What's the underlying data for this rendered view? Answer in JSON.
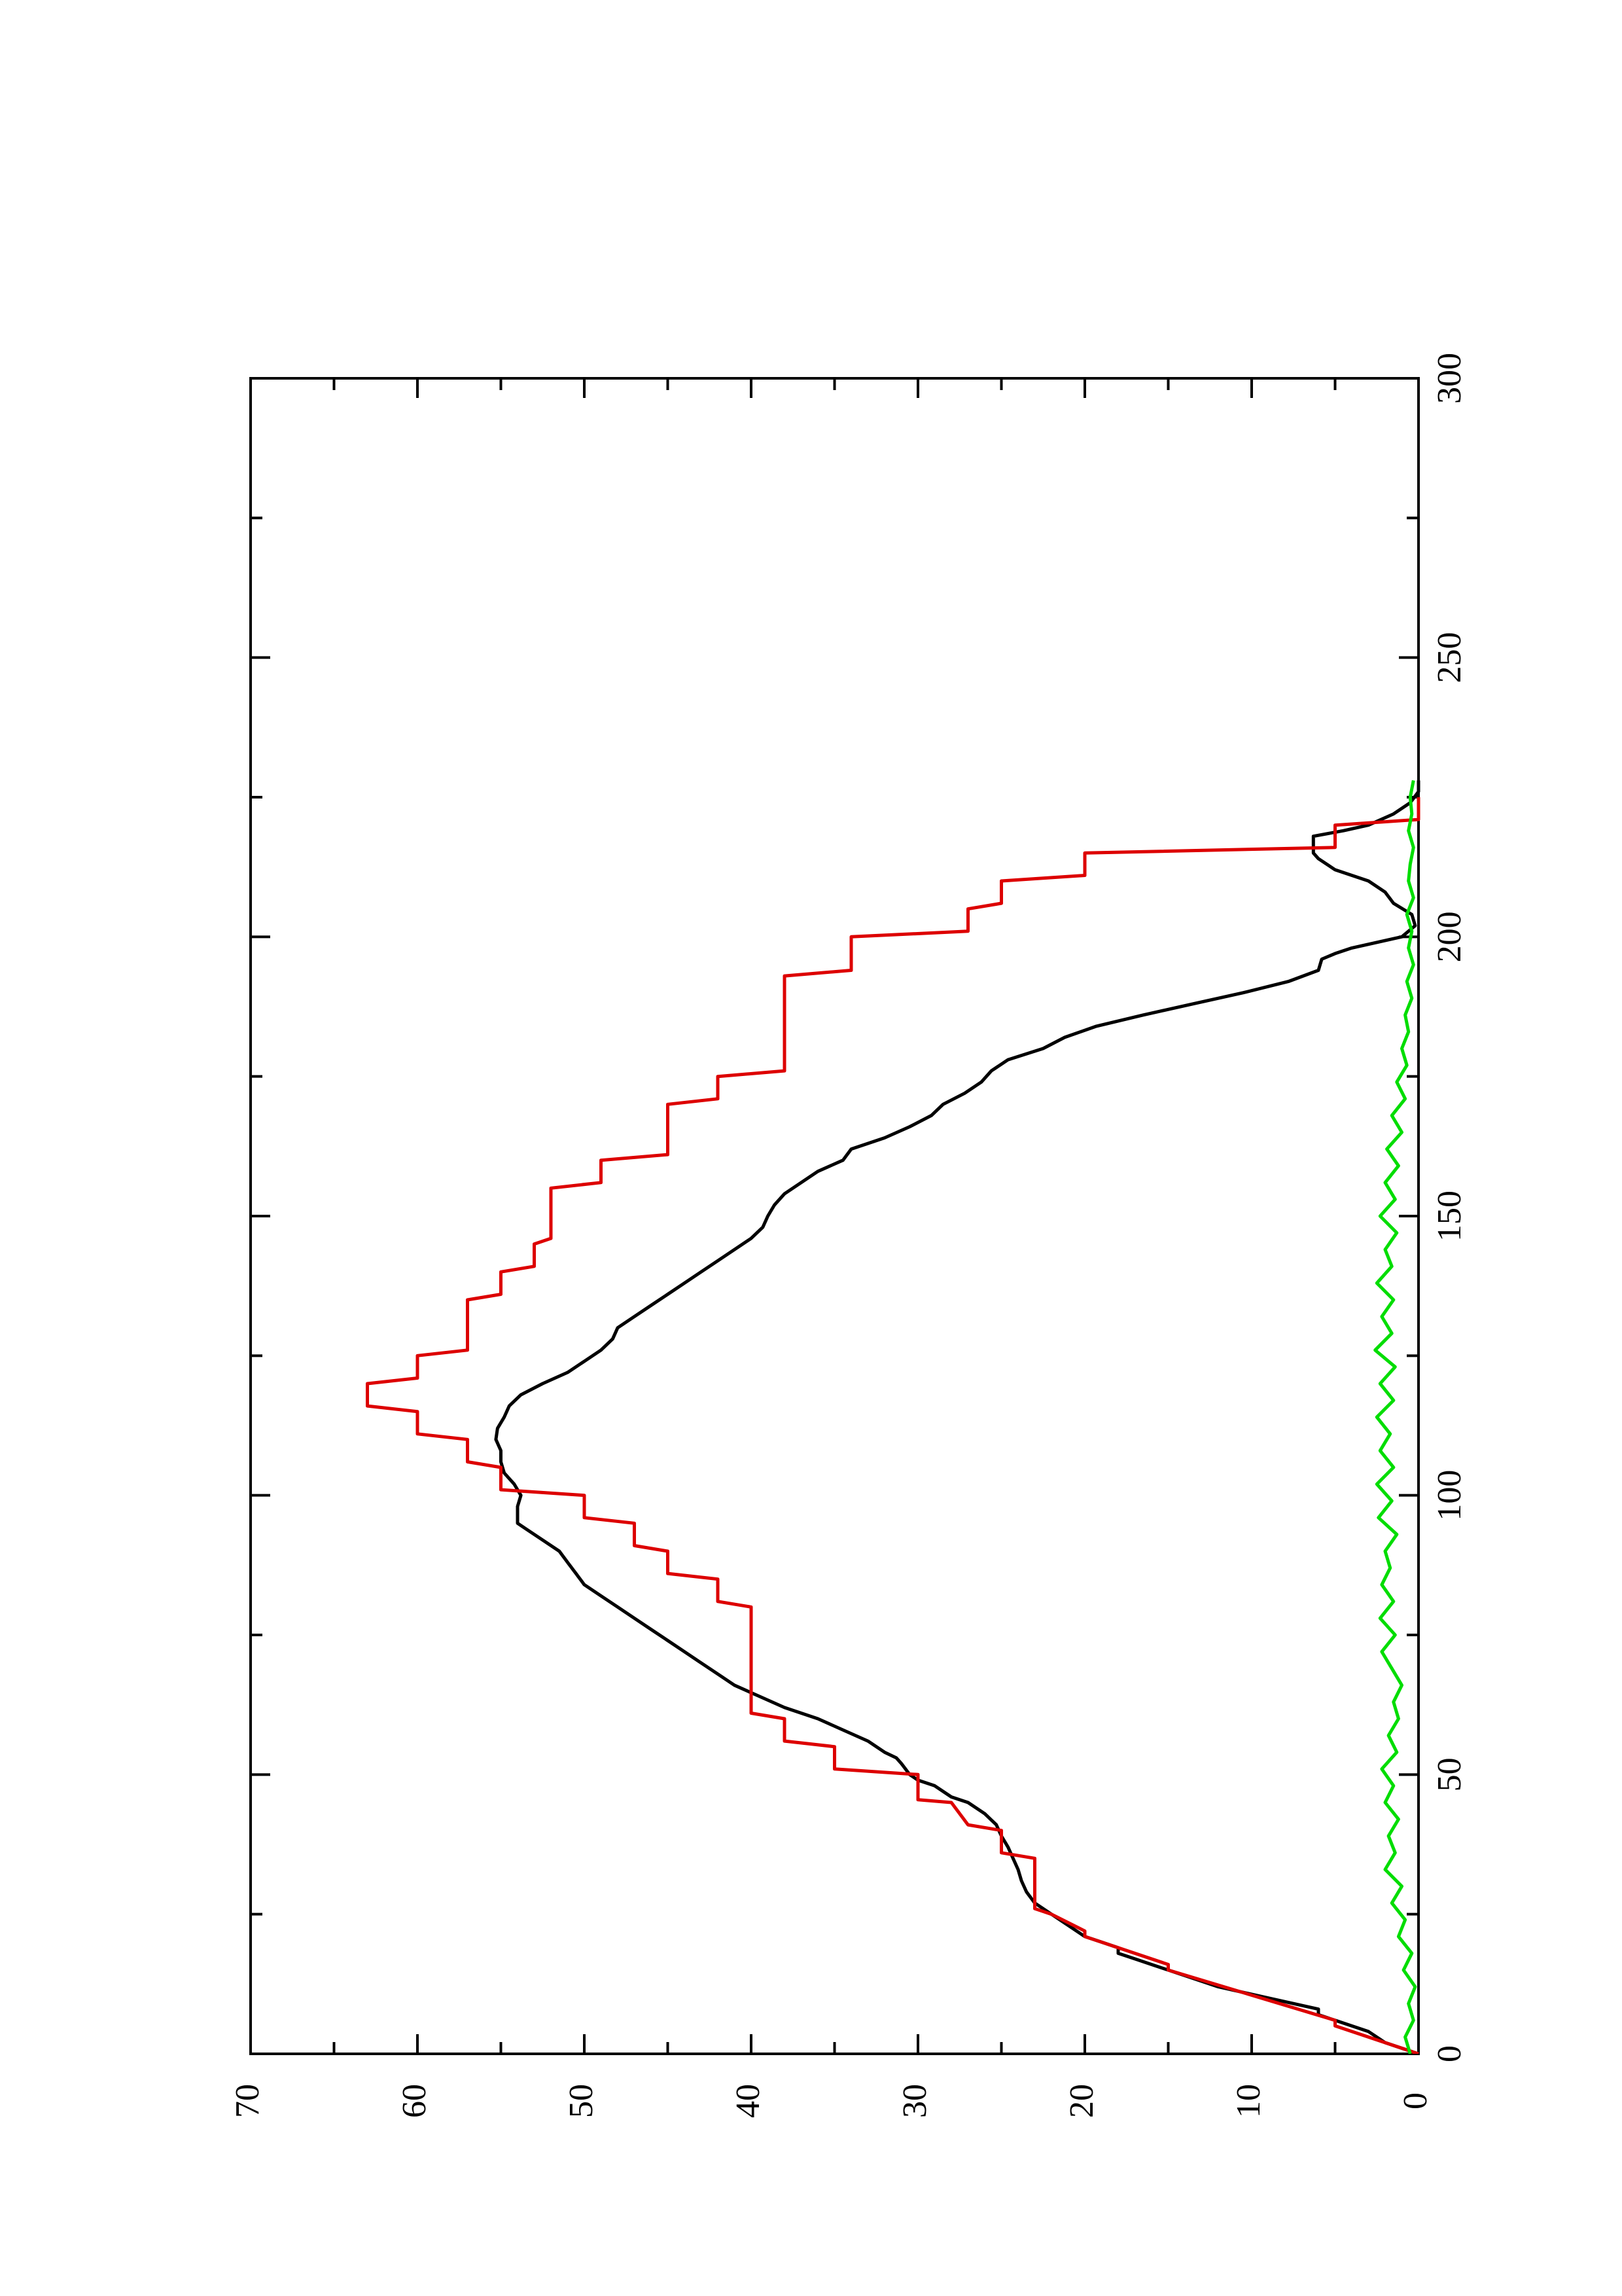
{
  "chart_data": {
    "type": "line",
    "title": "",
    "xlabel": "",
    "ylabel": "",
    "xlim": [
      0,
      300
    ],
    "ylim": [
      0,
      70
    ],
    "rotation": "rotated 90 degrees counter-clockwise on the page",
    "x_ticks": [
      0,
      50,
      100,
      150,
      200,
      250,
      300
    ],
    "x_tick_labels": [
      "0",
      "50",
      "100",
      "150",
      "200",
      "250",
      "300"
    ],
    "y_ticks": [
      0,
      10,
      20,
      30,
      40,
      50,
      60,
      70
    ],
    "y_tick_labels": [
      "0",
      "10",
      "20",
      "30",
      "40",
      "50",
      "60",
      "70"
    ],
    "grid": false,
    "legend": "none",
    "series": [
      {
        "color": "#000000",
        "x": [
          0,
          2,
          4,
          6,
          7,
          8,
          10,
          12,
          14,
          16,
          17,
          18,
          19,
          20,
          21,
          23,
          25,
          27,
          29,
          31,
          33,
          35,
          37,
          39,
          41,
          43,
          45,
          46,
          48,
          49,
          50,
          52,
          53,
          54,
          56,
          58,
          60,
          62,
          64,
          66,
          68,
          70,
          72,
          74,
          76,
          78,
          80,
          82,
          84,
          86,
          88,
          90,
          92,
          94,
          95,
          96,
          98,
          100,
          102,
          104,
          106,
          108,
          110,
          112,
          114,
          116,
          118,
          120,
          122,
          124,
          126,
          128,
          130,
          132,
          134,
          136,
          138,
          140,
          142,
          144,
          146,
          148,
          150,
          152,
          154,
          156,
          158,
          160,
          162,
          164,
          166,
          168,
          170,
          172,
          174,
          176,
          178,
          180,
          182,
          184,
          186,
          188,
          190,
          192,
          194,
          196,
          197,
          198,
          200,
          202,
          204,
          206,
          208,
          210,
          212,
          214,
          215,
          216,
          218,
          219,
          220,
          222,
          224,
          226,
          228
        ],
        "y": [
          0,
          2,
          3,
          5,
          6,
          6,
          9,
          12,
          14,
          16,
          17,
          18,
          18,
          19,
          20,
          21,
          22,
          23,
          23.5,
          23.8,
          24,
          24.3,
          24.6,
          25,
          25.3,
          26,
          27,
          28,
          29,
          30,
          30.5,
          31,
          31.3,
          32,
          33,
          34.5,
          36,
          38,
          39.5,
          41,
          42,
          43,
          44,
          45,
          46,
          47,
          48,
          49,
          50,
          50.5,
          51,
          51.5,
          52.5,
          53.5,
          54,
          54,
          54,
          53.8,
          54.2,
          54.8,
          55,
          55,
          55.3,
          55.2,
          54.8,
          54.5,
          53.8,
          52.5,
          51,
          50,
          49,
          48.3,
          48,
          47,
          46,
          45,
          44,
          43,
          42,
          41,
          40,
          39.3,
          39,
          38.6,
          38,
          37,
          36,
          34.5,
          34,
          32,
          30.5,
          29.2,
          28.5,
          27.2,
          26.2,
          25.6,
          24.6,
          22.5,
          21.2,
          19.3,
          16.5,
          13.5,
          10.5,
          7.8,
          6,
          5.8,
          5,
          4,
          1,
          0.2,
          0.4,
          1.5,
          2,
          3,
          5,
          6,
          6.3,
          6.3,
          6.3,
          4.5,
          3,
          1.5,
          0.5,
          0,
          0
        ]
      },
      {
        "color": "#dd0000",
        "x": [
          0,
          5,
          6,
          15,
          16,
          21,
          22,
          25,
          26,
          35,
          36,
          40,
          41,
          45,
          45.5,
          50,
          51,
          55,
          56,
          60,
          61,
          75,
          76,
          80,
          81,
          85,
          86,
          90,
          91,
          95,
          96,
          100,
          101,
          105,
          106,
          110,
          111,
          115,
          116,
          120,
          121,
          125,
          126,
          135,
          136,
          140,
          141,
          145,
          146,
          155,
          156,
          160,
          161,
          170,
          171,
          175,
          176,
          193,
          194,
          200,
          201,
          205,
          206,
          210,
          211,
          215,
          216,
          220,
          221,
          225
        ],
        "y": [
          0,
          5,
          5,
          15,
          15,
          20,
          20,
          22,
          23,
          23,
          25,
          25,
          27,
          28,
          30,
          30,
          35,
          35,
          38,
          38,
          40,
          40,
          40,
          40,
          42,
          42,
          45,
          45,
          47,
          47,
          50,
          50,
          55,
          55,
          57,
          57,
          60,
          60,
          63,
          63,
          60,
          60,
          57,
          57,
          55,
          55,
          53,
          53,
          52,
          52,
          49,
          49,
          45,
          45,
          42,
          42,
          38,
          38,
          34,
          34,
          27,
          27,
          25,
          25,
          20,
          20,
          5,
          5,
          0,
          0
        ],
        "note": "stepwise red series"
      },
      {
        "color": "#00dd00",
        "x": [
          0,
          3,
          6,
          9,
          12,
          15,
          18,
          21,
          24,
          27,
          30,
          33,
          36,
          39,
          42,
          45,
          48,
          51,
          54,
          57,
          60,
          63,
          66,
          69,
          72,
          75,
          78,
          81,
          84,
          87,
          90,
          93,
          96,
          99,
          102,
          105,
          108,
          111,
          114,
          117,
          120,
          123,
          126,
          129,
          132,
          135,
          138,
          141,
          144,
          147,
          150,
          153,
          156,
          159,
          162,
          165,
          168,
          171,
          174,
          177,
          180,
          183,
          186,
          189,
          192,
          195,
          198,
          201,
          204,
          207,
          210,
          213,
          216,
          219,
          222,
          225,
          228
        ],
        "y": [
          0.5,
          0.8,
          0.3,
          0.6,
          0.2,
          0.9,
          0.4,
          1.2,
          0.8,
          1.6,
          1.0,
          2.0,
          1.4,
          1.8,
          1.2,
          2.0,
          1.5,
          2.2,
          1.3,
          1.8,
          1.2,
          1.5,
          1.0,
          1.6,
          2.2,
          1.4,
          2.3,
          1.5,
          2.2,
          1.7,
          2.0,
          1.3,
          2.4,
          1.6,
          2.5,
          1.5,
          2.3,
          1.7,
          2.5,
          1.5,
          2.3,
          1.4,
          2.6,
          1.6,
          2.2,
          1.5,
          2.5,
          1.6,
          2.0,
          1.3,
          2.3,
          1.4,
          2.0,
          1.2,
          1.9,
          1.0,
          1.6,
          0.8,
          1.3,
          0.7,
          1.0,
          0.6,
          0.8,
          0.4,
          0.7,
          0.3,
          0.6,
          0.4,
          0.7,
          0.3,
          0.6,
          0.5,
          0.3,
          0.6,
          0.4,
          0.5,
          0.3
        ]
      }
    ]
  }
}
